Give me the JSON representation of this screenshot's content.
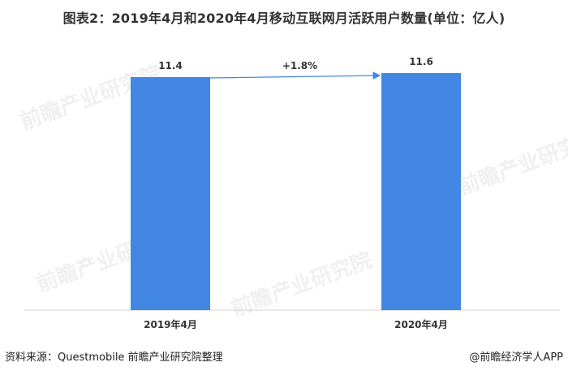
{
  "title": "图表2：2019年4月和2020年4月移动互联网月活跃用户数量(单位：亿人)",
  "source": "资料来源：Questmobile 前瞻产业研究院整理",
  "credit": "@前瞻经济学人APP",
  "watermark": "前瞻产业研究院",
  "colors": {
    "bar": "#4287E3",
    "arrow": "#4287E3",
    "axis": "#d0d0d0",
    "text": "#333333"
  },
  "chart_data": {
    "type": "bar",
    "categories": [
      "2019年4月",
      "2020年4月"
    ],
    "values": [
      11.4,
      11.6
    ],
    "value_labels": [
      "11.4",
      "11.6"
    ],
    "annotation": "+1.8%",
    "xlabel": "",
    "ylabel": "",
    "grid": false,
    "legend": "none"
  }
}
